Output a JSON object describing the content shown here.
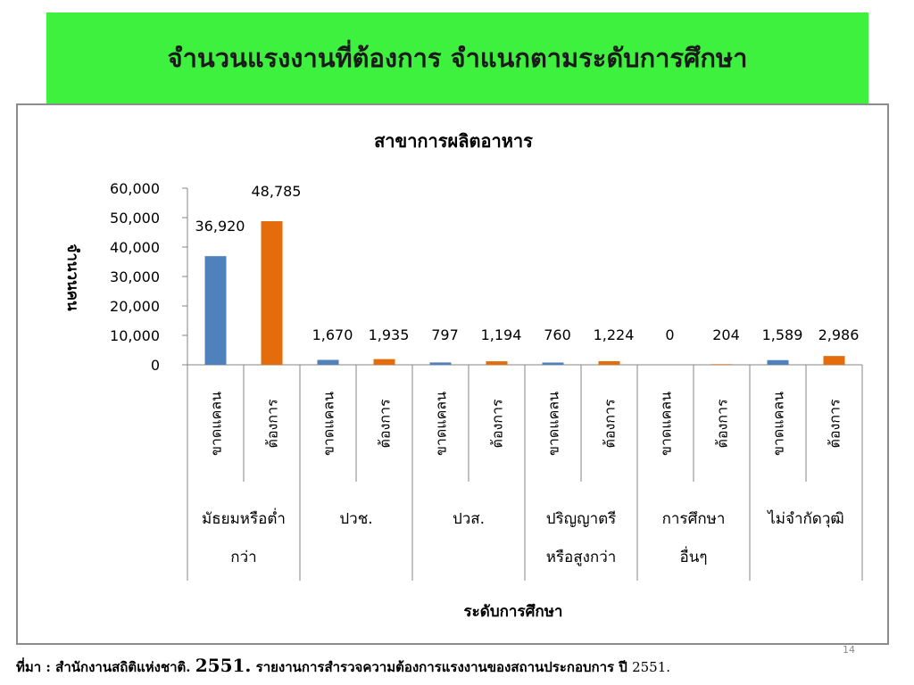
{
  "slide": {
    "title": "จำนวนแรงงานที่ต้องการ จำแนกตามระดับการศึกษา",
    "slide_number": "14",
    "source": {
      "prefix": "ที่มา : สำนักงานสถิติแห่งชาติ.",
      "year": "2551.",
      "text": "รายงานการสำรวจความต้องการแรงงานของสถานประกอบการ ปี",
      "year_end": "2551."
    }
  },
  "chart_data": {
    "type": "bar",
    "title": "สาขาการผลิตอาหาร",
    "xlabel": "ระดับการศึกษา",
    "ylabel": "จำนวนคน",
    "ylim": [
      0,
      60000
    ],
    "yticks": [
      0,
      10000,
      20000,
      30000,
      40000,
      50000,
      60000
    ],
    "ytick_labels": [
      "0",
      "10,000",
      "20,000",
      "30,000",
      "40,000",
      "50,000",
      "60,000"
    ],
    "grid": false,
    "groups": [
      {
        "label_lines": [
          "มัธยมหรือต่ำ",
          "กว่า"
        ],
        "bars": [
          {
            "label": "ขาดแคลน",
            "value": 36920,
            "value_label": "36,920",
            "color": "#4f81bd"
          },
          {
            "label": "ต้องการ",
            "value": 48785,
            "value_label": "48,785",
            "color": "#e46c0a"
          }
        ]
      },
      {
        "label_lines": [
          "ปวช."
        ],
        "bars": [
          {
            "label": "ขาดแคลน",
            "value": 1670,
            "value_label": "1,670",
            "color": "#4f81bd"
          },
          {
            "label": "ต้องการ",
            "value": 1935,
            "value_label": "1,935",
            "color": "#e46c0a"
          }
        ]
      },
      {
        "label_lines": [
          "ปวส."
        ],
        "bars": [
          {
            "label": "ขาดแคลน",
            "value": 797,
            "value_label": "797",
            "color": "#4f81bd"
          },
          {
            "label": "ต้องการ",
            "value": 1194,
            "value_label": "1,194",
            "color": "#e46c0a"
          }
        ]
      },
      {
        "label_lines": [
          "ปริญญาตรี",
          "หรือสูงกว่า"
        ],
        "bars": [
          {
            "label": "ขาดแคลน",
            "value": 760,
            "value_label": "760",
            "color": "#4f81bd"
          },
          {
            "label": "ต้องการ",
            "value": 1224,
            "value_label": "1,224",
            "color": "#e46c0a"
          }
        ]
      },
      {
        "label_lines": [
          "การศึกษา",
          "อื่นๆ"
        ],
        "bars": [
          {
            "label": "ขาดแคลน",
            "value": 0,
            "value_label": "0",
            "color": "#4f81bd"
          },
          {
            "label": "ต้องการ",
            "value": 204,
            "value_label": "204",
            "color": "#e46c0a"
          }
        ]
      },
      {
        "label_lines": [
          "ไม่จำกัดวุฒิ"
        ],
        "bars": [
          {
            "label": "ขาดแคลน",
            "value": 1589,
            "value_label": "1,589",
            "color": "#4f81bd"
          },
          {
            "label": "ต้องการ",
            "value": 2986,
            "value_label": "2,986",
            "color": "#e46c0a"
          }
        ]
      }
    ]
  }
}
